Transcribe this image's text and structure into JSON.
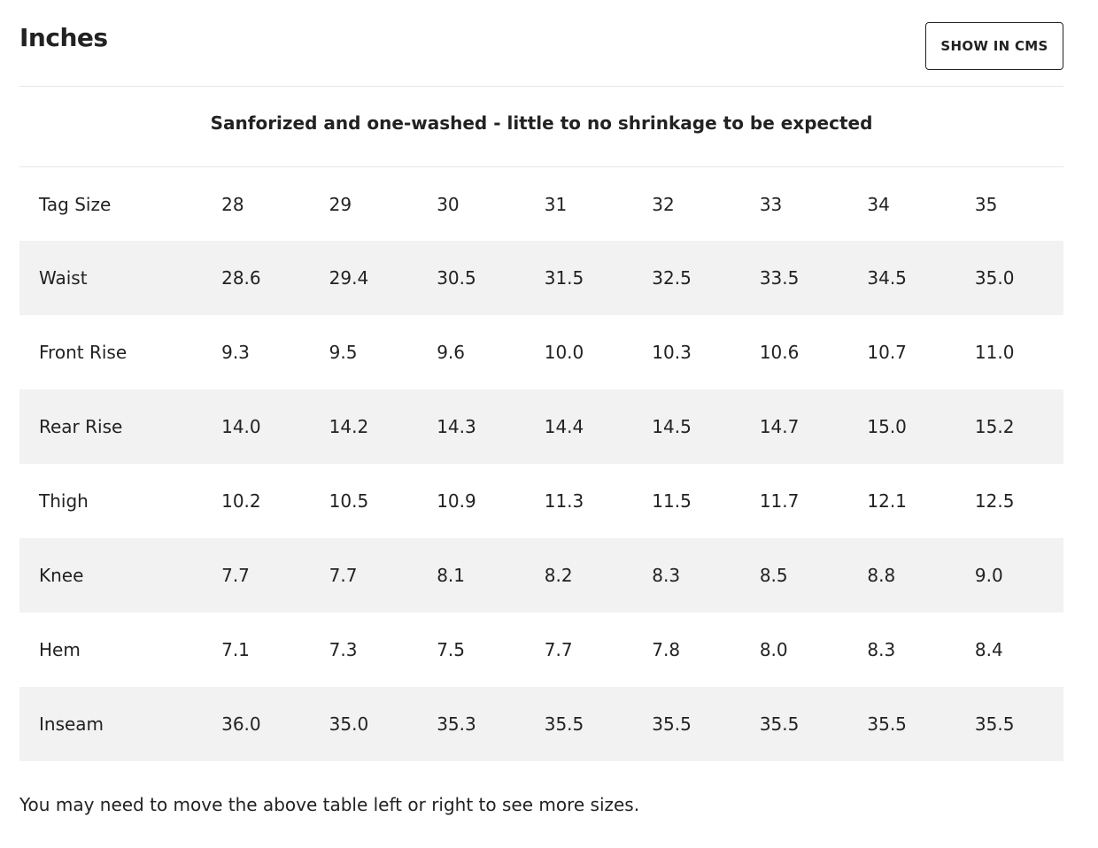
{
  "header": {
    "title": "Inches",
    "cms_button_label": "SHOW IN CMS"
  },
  "subtitle": "Sanforized and one-washed - little to no shrinkage to be expected",
  "table": {
    "header_label": "Tag Size",
    "sizes": [
      "28",
      "29",
      "30",
      "31",
      "32",
      "33",
      "34",
      "35"
    ],
    "rows": [
      {
        "label": "Waist",
        "values": [
          "28.6",
          "29.4",
          "30.5",
          "31.5",
          "32.5",
          "33.5",
          "34.5",
          "35.0"
        ]
      },
      {
        "label": "Front Rise",
        "values": [
          "9.3",
          "9.5",
          "9.6",
          "10.0",
          "10.3",
          "10.6",
          "10.7",
          "11.0"
        ]
      },
      {
        "label": "Rear Rise",
        "values": [
          "14.0",
          "14.2",
          "14.3",
          "14.4",
          "14.5",
          "14.7",
          "15.0",
          "15.2"
        ]
      },
      {
        "label": "Thigh",
        "values": [
          "10.2",
          "10.5",
          "10.9",
          "11.3",
          "11.5",
          "11.7",
          "12.1",
          "12.5"
        ]
      },
      {
        "label": "Knee",
        "values": [
          "7.7",
          "7.7",
          "8.1",
          "8.2",
          "8.3",
          "8.5",
          "8.8",
          "9.0"
        ]
      },
      {
        "label": "Hem",
        "values": [
          "7.1",
          "7.3",
          "7.5",
          "7.7",
          "7.8",
          "8.0",
          "8.3",
          "8.4"
        ]
      },
      {
        "label": "Inseam",
        "values": [
          "36.0",
          "35.0",
          "35.3",
          "35.5",
          "35.5",
          "35.5",
          "35.5",
          "35.5"
        ]
      }
    ]
  },
  "footer_note": "You may need to move the above table left or right to see more sizes.",
  "colors": {
    "text": "#222222",
    "row_stripe": "#f2f2f2",
    "divider": "#e6e6e6",
    "button_border": "#222222"
  }
}
